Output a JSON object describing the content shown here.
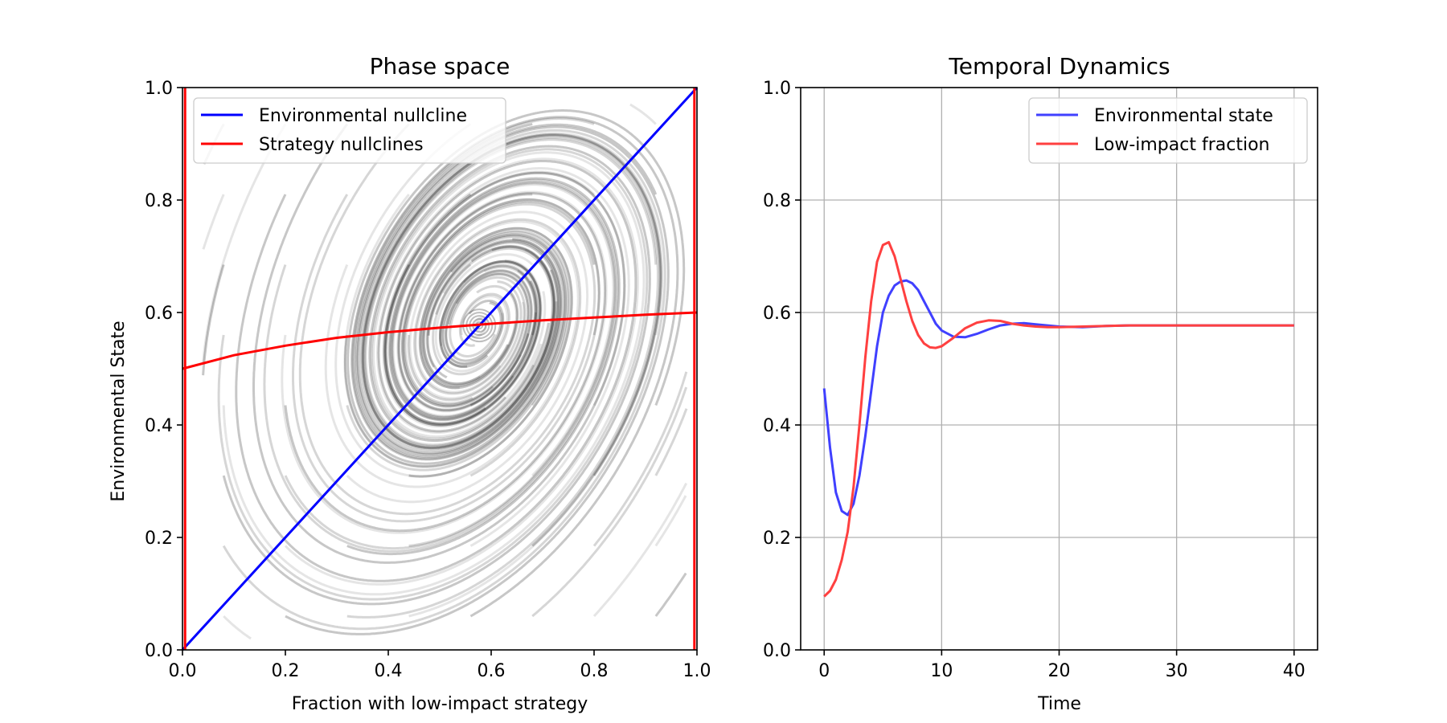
{
  "chart_data": [
    {
      "type": "line",
      "title": "Phase space",
      "xlabel": "Fraction with low-impact strategy",
      "ylabel": "Environmental State",
      "xlim": [
        0,
        1
      ],
      "ylim": [
        0,
        1
      ],
      "xticks": [
        "0.0",
        "0.2",
        "0.4",
        "0.6",
        "0.8",
        "1.0"
      ],
      "yticks": [
        "0.0",
        "0.2",
        "0.4",
        "0.6",
        "0.8",
        "1.0"
      ],
      "grid": false,
      "legend_position": "upper-left",
      "legend": [
        "Environmental nullcline",
        "Strategy nullclines"
      ],
      "colors": {
        "environmental": "#0000ff",
        "strategy": "#ff0000",
        "streamlines": "#000000"
      },
      "equilibrium": {
        "x": 0.577,
        "y": 0.577
      },
      "series": [
        {
          "name": "Environmental nullcline",
          "x": [
            0,
            1
          ],
          "y": [
            0,
            1
          ]
        },
        {
          "name": "Strategy nullclines",
          "x": [
            0,
            0.1,
            0.2,
            0.3,
            0.4,
            0.5,
            0.6,
            0.7,
            0.8,
            0.9,
            1.0
          ],
          "y": [
            0.5,
            0.524,
            0.541,
            0.555,
            0.565,
            0.573,
            0.58,
            0.586,
            0.591,
            0.596,
            0.6
          ]
        },
        {
          "name": "Strategy nullclines",
          "x": [
            0.005,
            0.005
          ],
          "y": [
            0,
            1
          ]
        },
        {
          "name": "Strategy nullclines",
          "x": [
            0.995,
            0.995
          ],
          "y": [
            0,
            1
          ]
        }
      ]
    },
    {
      "type": "line",
      "title": "Temporal Dynamics",
      "xlabel": "Time",
      "ylabel": "",
      "xlim": [
        -2,
        42
      ],
      "ylim": [
        0,
        1
      ],
      "xticks": [
        "0",
        "10",
        "20",
        "30",
        "40"
      ],
      "yticks": [
        "0.0",
        "0.2",
        "0.4",
        "0.6",
        "0.8",
        "1.0"
      ],
      "grid": true,
      "legend_position": "upper-right",
      "legend": [
        "Environmental state",
        "Low-impact fraction"
      ],
      "colors": {
        "environmental": "#4040ff",
        "lowimpact": "#ff4040"
      },
      "x": [
        0,
        0.5,
        1,
        1.5,
        2,
        2.5,
        3,
        3.5,
        4,
        4.5,
        5,
        5.5,
        6,
        6.5,
        7,
        7.5,
        8,
        8.5,
        9,
        9.5,
        10,
        11,
        12,
        13,
        14,
        15,
        16,
        17,
        18,
        19,
        20,
        22,
        24,
        26,
        28,
        30,
        32,
        34,
        36,
        38,
        40
      ],
      "series": [
        {
          "name": "Environmental state",
          "values": [
            0.465,
            0.36,
            0.28,
            0.247,
            0.24,
            0.26,
            0.31,
            0.38,
            0.46,
            0.54,
            0.6,
            0.63,
            0.648,
            0.655,
            0.657,
            0.652,
            0.64,
            0.62,
            0.6,
            0.58,
            0.568,
            0.557,
            0.556,
            0.562,
            0.57,
            0.577,
            0.58,
            0.581,
            0.579,
            0.577,
            0.575,
            0.574,
            0.576,
            0.577,
            0.577,
            0.577,
            0.577,
            0.577,
            0.577,
            0.577,
            0.577
          ]
        },
        {
          "name": "Low-impact fraction",
          "values": [
            0.095,
            0.105,
            0.125,
            0.16,
            0.21,
            0.29,
            0.4,
            0.52,
            0.62,
            0.69,
            0.72,
            0.725,
            0.7,
            0.66,
            0.62,
            0.585,
            0.56,
            0.545,
            0.538,
            0.537,
            0.54,
            0.555,
            0.572,
            0.582,
            0.586,
            0.585,
            0.58,
            0.577,
            0.575,
            0.574,
            0.574,
            0.575,
            0.576,
            0.577,
            0.577,
            0.577,
            0.577,
            0.577,
            0.577,
            0.577,
            0.577
          ]
        }
      ]
    }
  ]
}
